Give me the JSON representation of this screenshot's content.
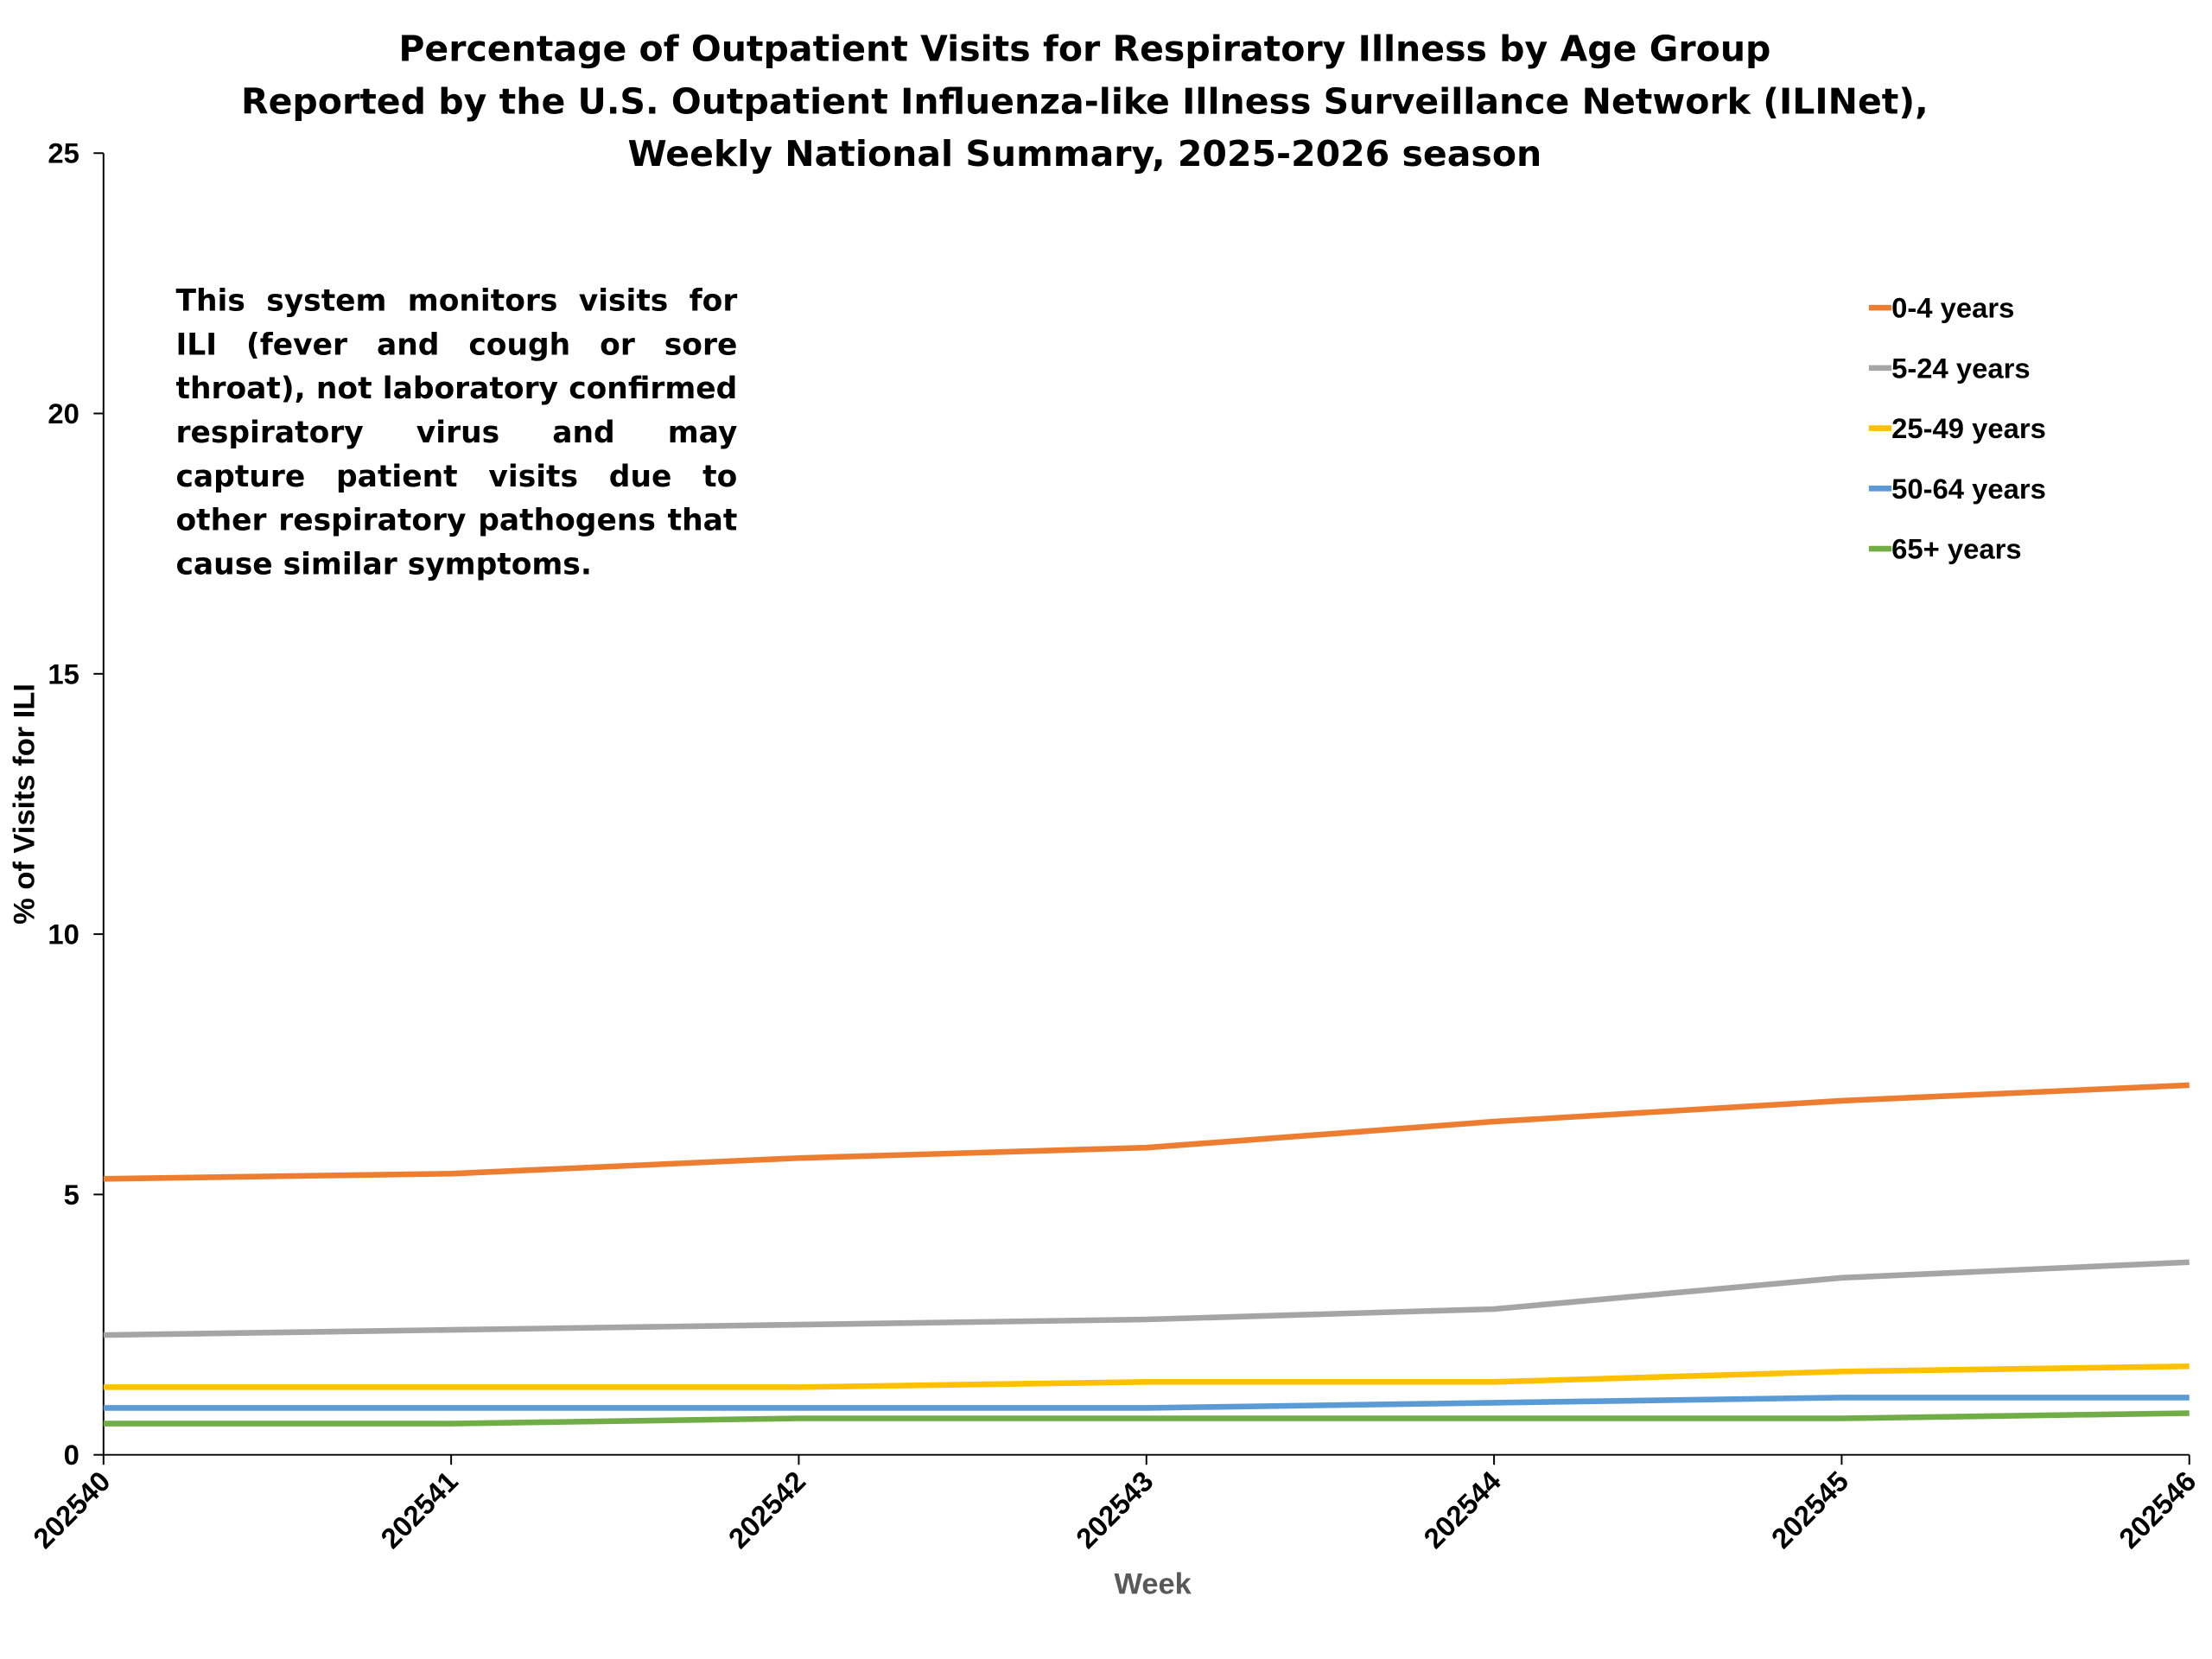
{
  "chart_data": {
    "type": "line",
    "title_lines": [
      "Percentage of Outpatient Visits for Respiratory Illness by Age Group",
      "Reported by the U.S. Outpatient Influenza-like Illness Surveillance Network (ILINet),",
      "Weekly National Summary, 2025-2026 season"
    ],
    "annotation": "This system monitors visits for ILI (fever and cough or sore throat), not laboratory confirmed respiratory virus and may capture patient visits due to other respiratory pathogens that cause similar symptoms.",
    "x_label": "Week",
    "y_label": "% of Visits for ILI",
    "categories": [
      "202540",
      "202541",
      "202542",
      "202543",
      "202544",
      "202545",
      "202546"
    ],
    "ylim": [
      0,
      25
    ],
    "yticks": [
      0,
      5,
      10,
      15,
      20,
      25
    ],
    "grid": false,
    "legend_position": "upper-right",
    "series": [
      {
        "name": "0-4 years",
        "color": "#ed7d31",
        "values": [
          5.3,
          5.4,
          5.7,
          5.9,
          6.4,
          6.8,
          7.1
        ]
      },
      {
        "name": "5-24 years",
        "color": "#a5a5a5",
        "values": [
          2.3,
          2.4,
          2.5,
          2.6,
          2.8,
          3.4,
          3.7
        ]
      },
      {
        "name": "25-49 years",
        "color": "#ffc000",
        "values": [
          1.3,
          1.3,
          1.3,
          1.4,
          1.4,
          1.6,
          1.7
        ]
      },
      {
        "name": "50-64 years",
        "color": "#5b9bd5",
        "values": [
          0.9,
          0.9,
          0.9,
          0.9,
          1.0,
          1.1,
          1.1
        ]
      },
      {
        "name": "65+ years",
        "color": "#70ad47",
        "values": [
          0.6,
          0.6,
          0.7,
          0.7,
          0.7,
          0.7,
          0.8
        ]
      }
    ]
  }
}
